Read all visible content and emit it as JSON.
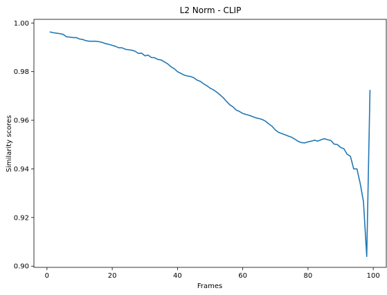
{
  "chart_data": {
    "type": "line",
    "title": "L2 Norm - CLIP",
    "xlabel": "Frames",
    "ylabel": "Similarity scores",
    "xlim": [
      -4,
      104
    ],
    "ylim": [
      0.8995,
      1.0015
    ],
    "grid": false,
    "xticks": [
      0,
      20,
      40,
      60,
      80,
      100
    ],
    "xtick_labels": [
      "0",
      "20",
      "40",
      "60",
      "80",
      "100"
    ],
    "yticks": [
      0.9,
      0.92,
      0.94,
      0.96,
      0.98,
      1.0
    ],
    "ytick_labels": [
      "0.90",
      "0.92",
      "0.94",
      "0.96",
      "0.98",
      "1.00"
    ],
    "series": [
      {
        "color": "#1f77b4",
        "x": [
          1,
          2,
          3,
          4,
          5,
          6,
          7,
          8,
          9,
          10,
          11,
          12,
          13,
          14,
          15,
          16,
          17,
          18,
          19,
          20,
          21,
          22,
          23,
          24,
          25,
          26,
          27,
          28,
          29,
          30,
          31,
          32,
          33,
          34,
          35,
          36,
          37,
          38,
          39,
          40,
          41,
          42,
          43,
          44,
          45,
          46,
          47,
          48,
          49,
          50,
          51,
          52,
          53,
          54,
          55,
          56,
          57,
          58,
          59,
          60,
          61,
          62,
          63,
          64,
          65,
          66,
          67,
          68,
          69,
          70,
          71,
          72,
          73,
          74,
          75,
          76,
          77,
          78,
          79,
          80,
          81,
          82,
          83,
          84,
          85,
          86,
          87,
          88,
          89,
          90,
          91,
          92,
          93,
          94,
          95,
          96,
          97,
          98,
          99
        ],
        "y": [
          0.9963,
          0.996,
          0.9958,
          0.9956,
          0.9953,
          0.9943,
          0.9942,
          0.994,
          0.994,
          0.9934,
          0.9932,
          0.9927,
          0.9925,
          0.9925,
          0.9925,
          0.9923,
          0.992,
          0.9915,
          0.9912,
          0.9908,
          0.9904,
          0.9898,
          0.9898,
          0.9892,
          0.989,
          0.9888,
          0.9884,
          0.9875,
          0.9876,
          0.9865,
          0.9868,
          0.9858,
          0.9857,
          0.985,
          0.9848,
          0.984,
          0.9832,
          0.982,
          0.9812,
          0.98,
          0.9793,
          0.9786,
          0.9782,
          0.978,
          0.9775,
          0.9765,
          0.976,
          0.975,
          0.9742,
          0.9732,
          0.9725,
          0.9716,
          0.9705,
          0.9693,
          0.9678,
          0.9664,
          0.9655,
          0.9642,
          0.9636,
          0.9628,
          0.9624,
          0.962,
          0.9615,
          0.961,
          0.9607,
          0.9603,
          0.9596,
          0.9585,
          0.9575,
          0.956,
          0.955,
          0.9545,
          0.954,
          0.9535,
          0.953,
          0.9522,
          0.9513,
          0.9508,
          0.9507,
          0.9511,
          0.9514,
          0.9518,
          0.9514,
          0.952,
          0.9524,
          0.952,
          0.9517,
          0.9502,
          0.95,
          0.9488,
          0.9483,
          0.946,
          0.9452,
          0.94,
          0.94,
          0.934,
          0.9265,
          0.904,
          0.9723
        ]
      }
    ]
  }
}
